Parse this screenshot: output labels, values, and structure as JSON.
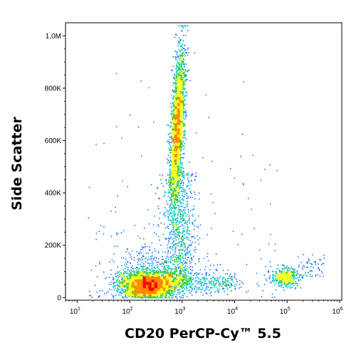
{
  "chart_data": {
    "type": "scatter",
    "xlabel": "CD20 PerCP-Cy™ 5.5",
    "ylabel": "Side Scatter",
    "x_scale": "log",
    "x_ticks": [
      {
        "value": 10,
        "base": "10",
        "exp": "1"
      },
      {
        "value": 100,
        "base": "10",
        "exp": "2"
      },
      {
        "value": 1000,
        "base": "10",
        "exp": "3"
      },
      {
        "value": 10000,
        "base": "10",
        "exp": "4"
      },
      {
        "value": 100000,
        "base": "10",
        "exp": "5"
      },
      {
        "value": 1000000,
        "base": "10",
        "exp": "6"
      }
    ],
    "y_ticks": [
      {
        "value": 0,
        "label": "0"
      },
      {
        "value": 200000,
        "label": "200K"
      },
      {
        "value": 400000,
        "label": "400K"
      },
      {
        "value": 600000,
        "label": "600K"
      },
      {
        "value": 800000,
        "label": "800K"
      },
      {
        "value": 1000000,
        "label": "1,0M"
      }
    ],
    "xlim": [
      6,
      1100000
    ],
    "ylim": [
      -10000,
      1050000
    ],
    "grid": false,
    "colormap": [
      "#0000cc",
      "#0066ff",
      "#00cccc",
      "#33cc33",
      "#ffff00",
      "#ff8800",
      "#ff0000"
    ],
    "populations": [
      {
        "name": "cluster_low",
        "log_x_center": 2.35,
        "y_center": 50000,
        "count": 3500
      },
      {
        "name": "cluster_vertical_upper",
        "log_x_center": 2.88,
        "y_center": 650000,
        "count": 2600
      },
      {
        "name": "cluster_vertical_mid",
        "log_x_center": 3.05,
        "y_center": 250000,
        "count": 900
      },
      {
        "name": "cluster_cd20_bright",
        "log_x_center": 4.95,
        "y_center": 80000,
        "count": 450
      }
    ]
  }
}
